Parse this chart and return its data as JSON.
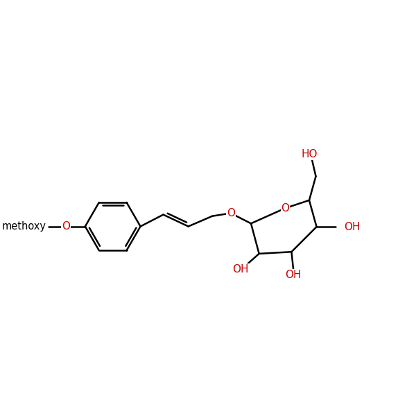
{
  "bg": "#ffffff",
  "bc": "#000000",
  "hc": "#cc0000",
  "fs": 11,
  "lw": 1.8,
  "dbo": 0.008,
  "xlim": [
    0,
    1
  ],
  "ylim": [
    0,
    1
  ]
}
